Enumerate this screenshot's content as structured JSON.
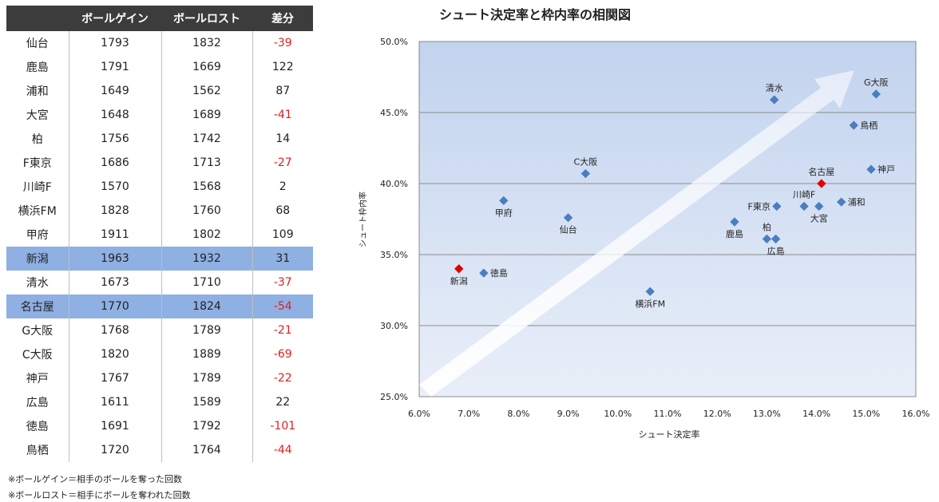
{
  "table": {
    "headers": [
      "",
      "ボールゲイン",
      "ボールロスト",
      "差分"
    ],
    "rows": [
      {
        "team": "仙台",
        "gain": "1793",
        "lost": "1832",
        "diff": "-39",
        "neg": true,
        "hl": false
      },
      {
        "team": "鹿島",
        "gain": "1791",
        "lost": "1669",
        "diff": "122",
        "neg": false,
        "hl": false
      },
      {
        "team": "浦和",
        "gain": "1649",
        "lost": "1562",
        "diff": "87",
        "neg": false,
        "hl": false
      },
      {
        "team": "大宮",
        "gain": "1648",
        "lost": "1689",
        "diff": "-41",
        "neg": true,
        "hl": false
      },
      {
        "team": "柏",
        "gain": "1756",
        "lost": "1742",
        "diff": "14",
        "neg": false,
        "hl": false
      },
      {
        "team": "F東京",
        "gain": "1686",
        "lost": "1713",
        "diff": "-27",
        "neg": true,
        "hl": false
      },
      {
        "team": "川崎F",
        "gain": "1570",
        "lost": "1568",
        "diff": "2",
        "neg": false,
        "hl": false
      },
      {
        "team": "横浜FM",
        "gain": "1828",
        "lost": "1760",
        "diff": "68",
        "neg": false,
        "hl": false
      },
      {
        "team": "甲府",
        "gain": "1911",
        "lost": "1802",
        "diff": "109",
        "neg": false,
        "hl": false
      },
      {
        "team": "新潟",
        "gain": "1963",
        "lost": "1932",
        "diff": "31",
        "neg": false,
        "hl": true
      },
      {
        "team": "清水",
        "gain": "1673",
        "lost": "1710",
        "diff": "-37",
        "neg": true,
        "hl": false
      },
      {
        "team": "名古屋",
        "gain": "1770",
        "lost": "1824",
        "diff": "-54",
        "neg": true,
        "hl": true
      },
      {
        "team": "G大阪",
        "gain": "1768",
        "lost": "1789",
        "diff": "-21",
        "neg": true,
        "hl": false
      },
      {
        "team": "C大阪",
        "gain": "1820",
        "lost": "1889",
        "diff": "-69",
        "neg": true,
        "hl": false
      },
      {
        "team": "神戸",
        "gain": "1767",
        "lost": "1789",
        "diff": "-22",
        "neg": true,
        "hl": false
      },
      {
        "team": "広島",
        "gain": "1611",
        "lost": "1589",
        "diff": "22",
        "neg": false,
        "hl": false
      },
      {
        "team": "徳島",
        "gain": "1691",
        "lost": "1792",
        "diff": "-101",
        "neg": true,
        "hl": false
      },
      {
        "team": "鳥栖",
        "gain": "1720",
        "lost": "1764",
        "diff": "-44",
        "neg": true,
        "hl": false
      }
    ]
  },
  "notes": [
    "※ボールゲイン＝相手のボールを奪った回数",
    "※ボールロスト＝相手にボールを奪われた回数"
  ],
  "chart_data": {
    "type": "scatter",
    "title": "シュート決定率と枠内率の相関図",
    "xlabel": "シュート決定率",
    "ylabel": "シュート枠内率",
    "xlim": [
      0.06,
      0.16
    ],
    "ylim": [
      0.25,
      0.5
    ],
    "xticks": [
      0.06,
      0.07,
      0.08,
      0.09,
      0.1,
      0.11,
      0.12,
      0.13,
      0.14,
      0.15,
      0.16
    ],
    "yticks": [
      0.25,
      0.3,
      0.35,
      0.4,
      0.45,
      0.5
    ],
    "grid": true,
    "highlight_color": "#e00000",
    "point_color": "#4a7ebf",
    "points": [
      {
        "label": "G大阪",
        "x": 0.152,
        "y": 0.463,
        "hl": false,
        "lp": "a"
      },
      {
        "label": "清水",
        "x": 0.1315,
        "y": 0.459,
        "hl": false,
        "lp": "a"
      },
      {
        "label": "鳥栖",
        "x": 0.1475,
        "y": 0.441,
        "hl": false,
        "lp": "r"
      },
      {
        "label": "神戸",
        "x": 0.151,
        "y": 0.41,
        "hl": false,
        "lp": "r"
      },
      {
        "label": "名古屋",
        "x": 0.141,
        "y": 0.4,
        "hl": true,
        "lp": "a"
      },
      {
        "label": "C大阪",
        "x": 0.0935,
        "y": 0.407,
        "hl": false,
        "lp": "a"
      },
      {
        "label": "甲府",
        "x": 0.077,
        "y": 0.388,
        "hl": false,
        "lp": "b"
      },
      {
        "label": "仙台",
        "x": 0.09,
        "y": 0.376,
        "hl": false,
        "lp": "b"
      },
      {
        "label": "F東京",
        "x": 0.132,
        "y": 0.384,
        "hl": false,
        "lp": "l"
      },
      {
        "label": "川崎F",
        "x": 0.1375,
        "y": 0.384,
        "hl": false,
        "lp": "a"
      },
      {
        "label": "大宮",
        "x": 0.1405,
        "y": 0.384,
        "hl": false,
        "lp": "b"
      },
      {
        "label": "浦和",
        "x": 0.145,
        "y": 0.387,
        "hl": false,
        "lp": "r"
      },
      {
        "label": "鹿島",
        "x": 0.1235,
        "y": 0.373,
        "hl": false,
        "lp": "b"
      },
      {
        "label": "柏",
        "x": 0.13,
        "y": 0.361,
        "hl": false,
        "lp": "a"
      },
      {
        "label": "広島",
        "x": 0.1318,
        "y": 0.361,
        "hl": false,
        "lp": "b"
      },
      {
        "label": "新潟",
        "x": 0.068,
        "y": 0.34,
        "hl": true,
        "lp": "b"
      },
      {
        "label": "徳島",
        "x": 0.073,
        "y": 0.337,
        "hl": false,
        "lp": "r"
      },
      {
        "label": "横浜FM",
        "x": 0.1065,
        "y": 0.324,
        "hl": false,
        "lp": "b"
      }
    ]
  }
}
